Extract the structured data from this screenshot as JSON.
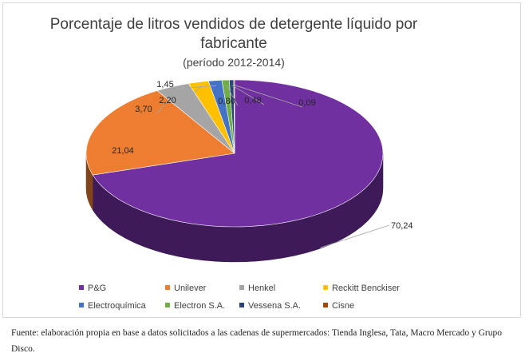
{
  "chart_data": {
    "type": "pie",
    "title_lines": [
      "Porcentaje de litros vendidos de detergente líquido por",
      "fabricante"
    ],
    "subtitle": "(período 2012-2014)",
    "slices": [
      {
        "name": "P&G",
        "value": 70.24,
        "label": "70,24",
        "color": "#7030a0"
      },
      {
        "name": "Unilever",
        "value": 21.04,
        "label": "21,04",
        "color": "#ed7d31"
      },
      {
        "name": "Henkel",
        "value": 3.7,
        "label": "3,70",
        "color": "#a5a5a5"
      },
      {
        "name": "Reckitt Benckiser",
        "value": 2.2,
        "label": "2,20",
        "color": "#ffc000"
      },
      {
        "name": "Electroquímica",
        "value": 1.45,
        "label": "1,45",
        "color": "#4472c4"
      },
      {
        "name": "Electron S.A.",
        "value": 0.8,
        "label": "0,80",
        "color": "#70ad47"
      },
      {
        "name": "Vessena S.A.",
        "value": 0.48,
        "label": "0,48",
        "color": "#264478"
      },
      {
        "name": "Cisne",
        "value": 0.09,
        "label": "0,09",
        "color": "#9e480e"
      }
    ],
    "legend_position": "bottom",
    "style": "3d-pie"
  },
  "source_note": "Fuente: elaboración propia en base a datos solicitados a las cadenas de supermercados: Tienda Inglesa, Tata, Macro Mercado y Grupo Disco."
}
